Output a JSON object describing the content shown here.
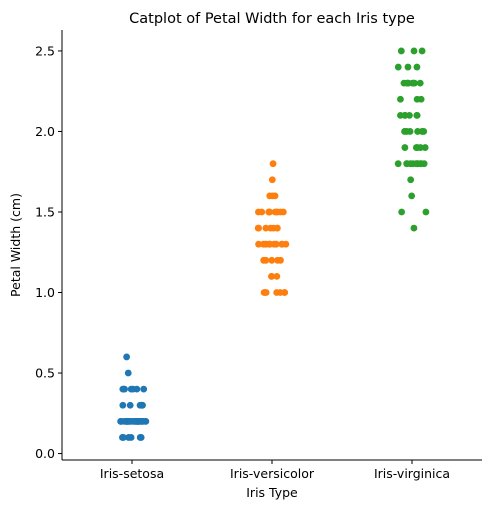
{
  "chart_data": {
    "type": "scatter",
    "title": "Catplot of Petal Width for each Iris type",
    "xlabel": "Iris Type",
    "ylabel": "Petal Width (cm)",
    "categories": [
      "Iris-setosa",
      "Iris-versicolor",
      "Iris-virginica"
    ],
    "ylim": [
      -0.04,
      2.63
    ],
    "yticks": [
      0.0,
      0.5,
      1.0,
      1.5,
      2.0,
      2.5
    ],
    "ytick_labels": [
      "0.0",
      "0.5",
      "1.0",
      "1.5",
      "2.0",
      "2.5"
    ],
    "grid": false,
    "series": [
      {
        "category": "Iris-setosa",
        "color": "#1f77b4",
        "values": [
          0.2,
          0.2,
          0.2,
          0.2,
          0.2,
          0.4,
          0.3,
          0.2,
          0.2,
          0.1,
          0.2,
          0.2,
          0.1,
          0.1,
          0.2,
          0.4,
          0.4,
          0.3,
          0.3,
          0.3,
          0.2,
          0.4,
          0.2,
          0.5,
          0.2,
          0.2,
          0.4,
          0.2,
          0.2,
          0.2,
          0.2,
          0.4,
          0.1,
          0.2,
          0.1,
          0.2,
          0.2,
          0.1,
          0.2,
          0.2,
          0.3,
          0.3,
          0.2,
          0.6,
          0.4,
          0.3,
          0.2,
          0.2,
          0.2,
          0.2
        ]
      },
      {
        "category": "Iris-versicolor",
        "color": "#ff7f0e",
        "values": [
          1.4,
          1.5,
          1.5,
          1.3,
          1.5,
          1.3,
          1.6,
          1.0,
          1.3,
          1.4,
          1.0,
          1.5,
          1.0,
          1.4,
          1.3,
          1.4,
          1.5,
          1.0,
          1.5,
          1.1,
          1.8,
          1.3,
          1.5,
          1.2,
          1.3,
          1.4,
          1.4,
          1.7,
          1.5,
          1.0,
          1.1,
          1.0,
          1.2,
          1.6,
          1.5,
          1.6,
          1.5,
          1.3,
          1.3,
          1.3,
          1.2,
          1.4,
          1.2,
          1.0,
          1.3,
          1.2,
          1.3,
          1.3,
          1.1,
          1.3
        ]
      },
      {
        "category": "Iris-virginica",
        "color": "#2ca02c",
        "values": [
          2.5,
          1.9,
          2.1,
          1.8,
          2.2,
          2.1,
          1.7,
          1.8,
          1.8,
          2.5,
          2.0,
          1.9,
          2.1,
          2.0,
          2.4,
          2.3,
          1.8,
          2.2,
          2.3,
          1.5,
          2.3,
          2.0,
          2.0,
          1.8,
          2.1,
          1.8,
          1.8,
          1.8,
          2.1,
          1.6,
          1.9,
          2.0,
          2.2,
          1.5,
          1.4,
          2.3,
          2.4,
          1.8,
          1.8,
          2.1,
          2.4,
          2.3,
          1.9,
          2.3,
          2.5,
          2.3,
          1.9,
          2.0,
          2.3,
          1.8
        ]
      }
    ]
  }
}
